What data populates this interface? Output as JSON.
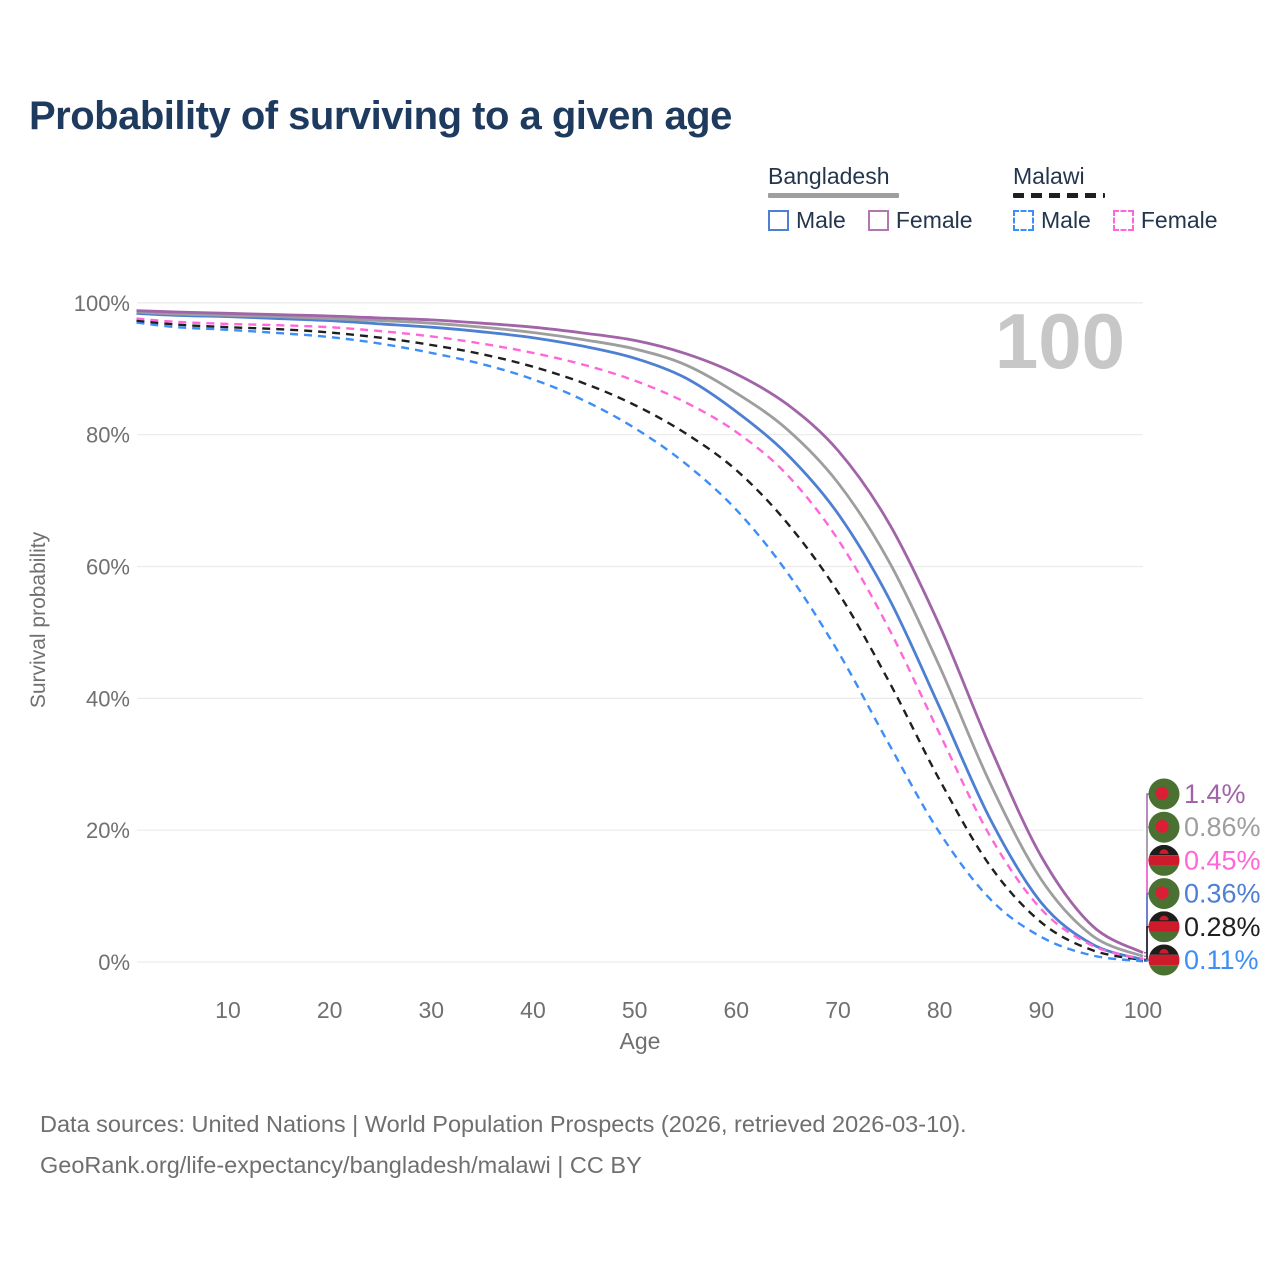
{
  "title": "Probability of surviving to a given age",
  "watermark": "100",
  "legend": {
    "groups": [
      {
        "country": "Bangladesh",
        "line_style": "solid",
        "line_color": "#9e9e9e",
        "items": [
          {
            "label": "Male",
            "color": "#4d7fd2",
            "style": "solid"
          },
          {
            "label": "Female",
            "color": "#b276b2",
            "style": "solid"
          }
        ]
      },
      {
        "country": "Malawi",
        "line_style": "dashed",
        "line_color": "#1f1f1f",
        "items": [
          {
            "label": "Male",
            "color": "#3e8ef7",
            "style": "dashed"
          },
          {
            "label": "Female",
            "color": "#ff66d9",
            "style": "dashed"
          }
        ]
      }
    ]
  },
  "chart_data": {
    "type": "line",
    "title": "Probability of surviving to a given age",
    "xlabel": "Age",
    "ylabel": "Survival probability",
    "xlim": [
      1,
      100
    ],
    "ylim": [
      0,
      100
    ],
    "x_ticks": [
      10,
      20,
      30,
      40,
      50,
      60,
      70,
      80,
      90,
      100
    ],
    "y_ticks": [
      0,
      20,
      40,
      60,
      80,
      100
    ],
    "y_tick_suffix": "%",
    "grid": "horizontal",
    "hover_age_indicator": "100",
    "ages": [
      1,
      5,
      10,
      15,
      20,
      25,
      30,
      35,
      40,
      45,
      50,
      55,
      60,
      65,
      70,
      75,
      80,
      85,
      90,
      95,
      100
    ],
    "series": [
      {
        "name": "Bangladesh Female",
        "country": "Bangladesh",
        "sex": "Female",
        "color": "#a264a8",
        "dash": "solid",
        "flag": "bangladesh",
        "end_label": "1.4%",
        "values": [
          98.8,
          98.6,
          98.4,
          98.2,
          98.0,
          97.7,
          97.4,
          96.9,
          96.3,
          95.4,
          94.3,
          92.3,
          89.2,
          84.6,
          77.6,
          66.6,
          51.0,
          32.5,
          16.0,
          5.5,
          1.4
        ]
      },
      {
        "name": "Bangladesh Both sexes",
        "country": "Bangladesh",
        "sex": "Both",
        "color": "#9e9e9e",
        "dash": "solid",
        "flag": "bangladesh",
        "end_label": "0.86%",
        "values": [
          98.6,
          98.3,
          98.1,
          97.9,
          97.6,
          97.3,
          96.9,
          96.3,
          95.5,
          94.4,
          93.0,
          90.6,
          86.3,
          80.8,
          72.7,
          60.8,
          44.8,
          27.0,
          12.5,
          4.0,
          0.86
        ]
      },
      {
        "name": "Malawi Female",
        "country": "Malawi",
        "sex": "Female",
        "color": "#ff66d9",
        "dash": "dashed",
        "flag": "malawi",
        "end_label": "0.45%",
        "values": [
          97.6,
          97.1,
          96.8,
          96.6,
          96.3,
          95.7,
          94.9,
          93.8,
          92.4,
          90.6,
          88.2,
          84.9,
          80.4,
          73.9,
          64.1,
          50.6,
          34.6,
          19.0,
          8.0,
          2.5,
          0.45
        ]
      },
      {
        "name": "Bangladesh Male",
        "country": "Bangladesh",
        "sex": "Male",
        "color": "#4d7fd2",
        "dash": "solid",
        "flag": "bangladesh",
        "end_label": "0.36%",
        "values": [
          98.4,
          98.1,
          97.9,
          97.6,
          97.3,
          96.8,
          96.3,
          95.6,
          94.7,
          93.4,
          91.6,
          88.6,
          83.5,
          77.0,
          68.0,
          55.2,
          38.6,
          21.6,
          9.0,
          2.7,
          0.36
        ]
      },
      {
        "name": "Malawi Both sexes",
        "country": "Malawi",
        "sex": "Both",
        "color": "#1f1f1f",
        "dash": "dashed",
        "flag": "malawi",
        "end_label": "0.28%",
        "values": [
          97.3,
          96.7,
          96.3,
          96.0,
          95.5,
          94.7,
          93.6,
          92.2,
          90.3,
          87.8,
          84.5,
          80.2,
          74.6,
          66.6,
          56.1,
          42.6,
          27.6,
          14.5,
          6.0,
          1.8,
          0.28
        ]
      },
      {
        "name": "Malawi Male",
        "country": "Malawi",
        "sex": "Male",
        "color": "#3e8ef7",
        "dash": "dashed",
        "flag": "malawi",
        "end_label": "0.11%",
        "values": [
          97.0,
          96.3,
          95.9,
          95.4,
          94.8,
          93.8,
          92.4,
          90.7,
          88.4,
          85.2,
          81.0,
          75.6,
          68.6,
          59.1,
          47.1,
          33.1,
          19.6,
          9.5,
          3.8,
          1.0,
          0.11
        ]
      }
    ],
    "flag_colors": {
      "bangladesh_green": "#4a7132",
      "bangladesh_red": "#dc1e35",
      "malawi_black": "#1d1d1b",
      "malawi_red": "#ce1b2b",
      "malawi_green": "#4a7132"
    },
    "axis_text_color": "#707070",
    "grid_color": "#ececec",
    "watermark_color": "#c7c7c7"
  },
  "footer": {
    "line1": "Data sources: United Nations | World Population Prospects (2026, retrieved 2026-03-10).",
    "line2": "GeoRank.org/life-expectancy/bangladesh/malawi | CC BY"
  }
}
